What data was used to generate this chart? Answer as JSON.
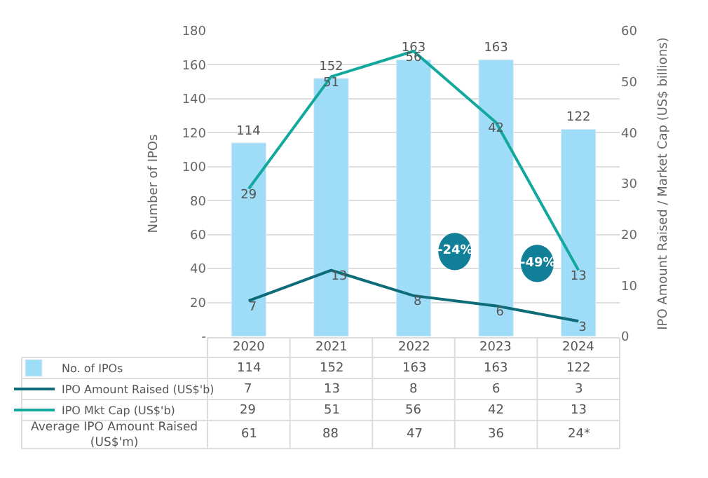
{
  "chart_data": {
    "type": "bar",
    "categories": [
      "2020",
      "2021",
      "2022",
      "2023",
      "2024"
    ],
    "ylabel": "Number of IPOs",
    "y2label": "IPO Amount Raised / Market Cap (US$ billions)",
    "ylim": [
      0,
      180
    ],
    "yticks": [
      {
        "value": 0,
        "label": "-"
      },
      20,
      40,
      60,
      80,
      100,
      120,
      140,
      160,
      180
    ],
    "y2lim": [
      0,
      60
    ],
    "y2ticks": [
      0,
      10,
      20,
      30,
      40,
      50,
      60
    ],
    "grid": "y",
    "legend": "bottom",
    "series": [
      {
        "name": "No. of IPOs",
        "color": "#9fdcf7",
        "values": [
          114,
          152,
          163,
          163,
          122
        ],
        "value_labels": [
          "114",
          "152",
          "163",
          "163",
          "122"
        ]
      },
      {
        "name": "IPO Amount Raised (US$'b)",
        "type": "line",
        "axis": "y2",
        "color": "#0e6b78",
        "values": [
          7,
          13,
          8,
          6,
          3
        ],
        "value_labels": [
          "7",
          "13",
          "8",
          "6",
          "3"
        ]
      },
      {
        "name": "IPO Mkt Cap (US$'b)",
        "type": "line",
        "axis": "y2",
        "color": "#13a89e",
        "values": [
          29,
          51,
          56,
          42,
          13
        ],
        "value_labels": [
          "29",
          "51",
          "56",
          "42",
          "13"
        ]
      }
    ],
    "annotations": [
      "-24%",
      "-49%",
      "114",
      "152",
      "163",
      "163",
      "122",
      "7",
      "13",
      "8",
      "6",
      "3",
      "29",
      "51",
      "56",
      "42",
      "13",
      "Average IPO Amount Raised (US$'m)",
      "61",
      "88",
      "47",
      "36",
      "24*"
    ]
  }
}
